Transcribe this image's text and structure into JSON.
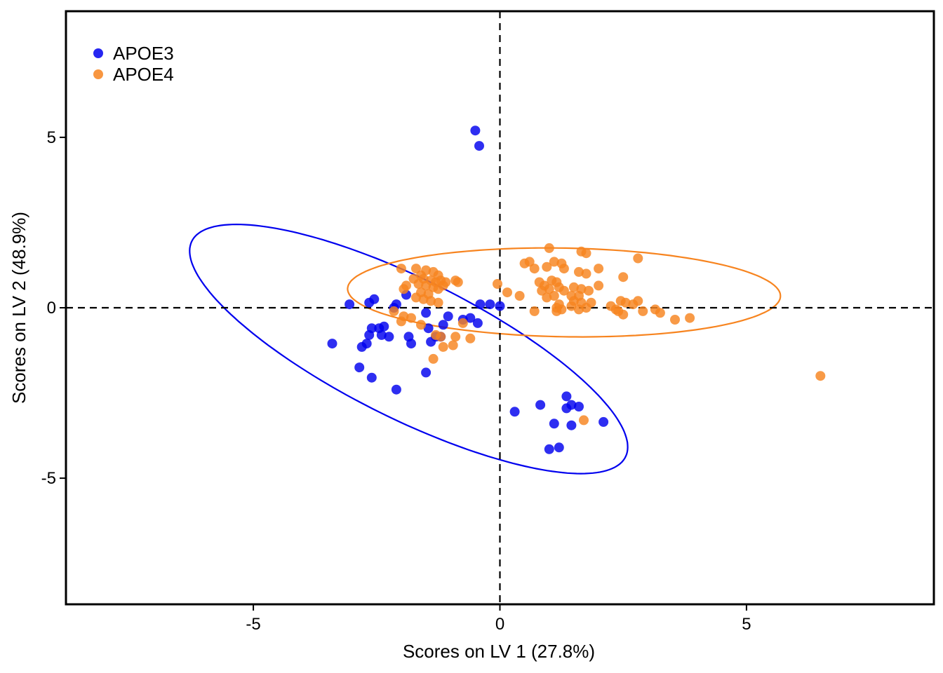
{
  "chart_data": {
    "type": "scatter",
    "xlabel": "Scores on LV 1 (27.8%)",
    "ylabel": "Scores on LV 2 (48.9%)",
    "xlim": [
      -8.8,
      8.8
    ],
    "ylim": [
      -8.7,
      8.7
    ],
    "x_ticks": [
      {
        "value": -5,
        "label": "-5"
      },
      {
        "value": 0,
        "label": "0"
      },
      {
        "value": 5,
        "label": "5"
      }
    ],
    "y_ticks": [
      {
        "value": 5,
        "label": "5"
      },
      {
        "value": 0,
        "label": "0"
      },
      {
        "value": -5,
        "label": "-5"
      }
    ],
    "reference_lines": {
      "x": 0,
      "y": 0,
      "style": "dashed"
    },
    "grid": false,
    "legend_position": "top-left",
    "series": [
      {
        "name": "APOE3",
        "color": "#0000ee",
        "points": [
          [
            -0.5,
            5.2
          ],
          [
            -0.42,
            4.75
          ],
          [
            -3.05,
            0.1
          ],
          [
            -2.55,
            0.25
          ],
          [
            -2.65,
            0.15
          ],
          [
            -2.1,
            0.1
          ],
          [
            -1.9,
            0.38
          ],
          [
            -2.15,
            0.0
          ],
          [
            -1.05,
            -0.25
          ],
          [
            -0.6,
            -0.3
          ],
          [
            -0.45,
            -0.45
          ],
          [
            -0.4,
            0.1
          ],
          [
            -0.2,
            0.1
          ],
          [
            0.0,
            0.05
          ],
          [
            -0.75,
            -0.35
          ],
          [
            -1.15,
            -0.5
          ],
          [
            -1.5,
            -0.15
          ],
          [
            -1.45,
            -0.6
          ],
          [
            -1.3,
            -0.85
          ],
          [
            -1.2,
            -0.85
          ],
          [
            -1.4,
            -1.0
          ],
          [
            -1.85,
            -0.85
          ],
          [
            -1.8,
            -1.05
          ],
          [
            -2.35,
            -0.55
          ],
          [
            -2.45,
            -0.6
          ],
          [
            -2.6,
            -0.6
          ],
          [
            -2.65,
            -0.8
          ],
          [
            -2.4,
            -0.8
          ],
          [
            -2.25,
            -0.85
          ],
          [
            -2.7,
            -1.05
          ],
          [
            -2.8,
            -1.15
          ],
          [
            -3.4,
            -1.05
          ],
          [
            -2.85,
            -1.75
          ],
          [
            -2.6,
            -2.05
          ],
          [
            -1.5,
            -1.9
          ],
          [
            -2.1,
            -2.4
          ],
          [
            0.3,
            -3.05
          ],
          [
            0.82,
            -2.85
          ],
          [
            1.1,
            -3.4
          ],
          [
            1.35,
            -2.6
          ],
          [
            1.35,
            -2.95
          ],
          [
            1.45,
            -2.85
          ],
          [
            1.6,
            -2.9
          ],
          [
            1.45,
            -3.45
          ],
          [
            2.1,
            -3.35
          ],
          [
            1.2,
            -4.1
          ],
          [
            1.0,
            -4.15
          ]
        ]
      },
      {
        "name": "APOE4",
        "color": "#f7841f",
        "points": [
          [
            -2.0,
            1.15
          ],
          [
            -1.7,
            1.15
          ],
          [
            -1.5,
            1.1
          ],
          [
            -1.35,
            1.05
          ],
          [
            -1.25,
            0.95
          ],
          [
            -1.6,
            0.95
          ],
          [
            -1.75,
            0.85
          ],
          [
            -1.55,
            0.85
          ],
          [
            -1.4,
            0.8
          ],
          [
            -1.3,
            0.75
          ],
          [
            -1.2,
            0.8
          ],
          [
            -1.1,
            0.75
          ],
          [
            -0.9,
            0.8
          ],
          [
            -0.85,
            0.75
          ],
          [
            -1.65,
            0.7
          ],
          [
            -1.5,
            0.65
          ],
          [
            -1.35,
            0.6
          ],
          [
            -1.25,
            0.55
          ],
          [
            -1.15,
            0.65
          ],
          [
            -1.9,
            0.65
          ],
          [
            -1.95,
            0.55
          ],
          [
            -1.6,
            0.45
          ],
          [
            -1.45,
            0.4
          ],
          [
            -1.7,
            0.3
          ],
          [
            -1.55,
            0.25
          ],
          [
            -1.4,
            0.2
          ],
          [
            -1.25,
            0.15
          ],
          [
            -2.15,
            -0.1
          ],
          [
            -1.95,
            -0.25
          ],
          [
            -1.8,
            -0.3
          ],
          [
            -2.0,
            -0.4
          ],
          [
            -1.6,
            -0.5
          ],
          [
            -1.3,
            -0.8
          ],
          [
            -1.2,
            -0.85
          ],
          [
            -0.9,
            -0.85
          ],
          [
            -0.6,
            -0.9
          ],
          [
            -1.15,
            -1.15
          ],
          [
            -0.95,
            -1.1
          ],
          [
            -1.35,
            -1.5
          ],
          [
            -0.75,
            -0.45
          ],
          [
            -0.05,
            0.7
          ],
          [
            0.15,
            0.45
          ],
          [
            0.4,
            0.35
          ],
          [
            1.0,
            1.75
          ],
          [
            0.5,
            1.3
          ],
          [
            0.6,
            1.35
          ],
          [
            0.7,
            1.15
          ],
          [
            0.95,
            1.2
          ],
          [
            1.1,
            1.35
          ],
          [
            1.25,
            1.3
          ],
          [
            1.65,
            1.65
          ],
          [
            1.75,
            1.6
          ],
          [
            1.3,
            1.15
          ],
          [
            1.6,
            1.05
          ],
          [
            1.75,
            1.0
          ],
          [
            2.0,
            1.15
          ],
          [
            2.8,
            1.45
          ],
          [
            2.5,
            0.9
          ],
          [
            0.8,
            0.75
          ],
          [
            0.9,
            0.65
          ],
          [
            1.05,
            0.8
          ],
          [
            1.15,
            0.75
          ],
          [
            1.2,
            0.6
          ],
          [
            1.3,
            0.5
          ],
          [
            1.0,
            0.55
          ],
          [
            0.85,
            0.5
          ],
          [
            0.95,
            0.3
          ],
          [
            1.1,
            0.35
          ],
          [
            1.45,
            0.35
          ],
          [
            1.5,
            0.6
          ],
          [
            1.65,
            0.55
          ],
          [
            1.8,
            0.5
          ],
          [
            2.0,
            0.65
          ],
          [
            1.6,
            0.35
          ],
          [
            1.5,
            0.2
          ],
          [
            1.65,
            0.15
          ],
          [
            1.85,
            0.15
          ],
          [
            1.45,
            0.05
          ],
          [
            1.15,
            0.0
          ],
          [
            1.25,
            -0.05
          ],
          [
            1.6,
            -0.05
          ],
          [
            1.75,
            0.0
          ],
          [
            2.25,
            0.05
          ],
          [
            2.35,
            -0.05
          ],
          [
            2.45,
            0.2
          ],
          [
            2.55,
            0.15
          ],
          [
            2.7,
            0.1
          ],
          [
            2.8,
            0.2
          ],
          [
            2.4,
            -0.1
          ],
          [
            2.5,
            -0.2
          ],
          [
            2.9,
            -0.1
          ],
          [
            3.15,
            -0.05
          ],
          [
            3.25,
            -0.15
          ],
          [
            3.55,
            -0.35
          ],
          [
            3.85,
            -0.3
          ],
          [
            6.5,
            -2.0
          ],
          [
            1.7,
            -3.3
          ],
          [
            1.2,
            0.1
          ],
          [
            1.15,
            -0.1
          ],
          [
            0.7,
            -0.1
          ]
        ]
      }
    ],
    "ellipses": [
      {
        "series": "APOE3",
        "color": "#0000ee",
        "center": [
          -1.85,
          -1.21
        ],
        "semi_major": 5.45,
        "semi_minor": 1.84,
        "angle_deg": -38
      },
      {
        "series": "APOE4",
        "color": "#f7841f",
        "center": [
          1.3,
          0.45
        ],
        "semi_major": 4.39,
        "semi_minor": 1.3,
        "angle_deg": -1.5
      }
    ]
  }
}
